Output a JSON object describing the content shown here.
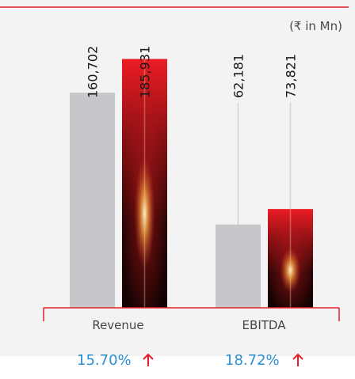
{
  "chart_data": {
    "type": "bar",
    "unit_note": "(₹ in Mn)",
    "categories": [
      "Revenue",
      "EBITDA"
    ],
    "series": [
      {
        "values": [
          160702,
          62181
        ],
        "color": "#c6c7cb"
      },
      {
        "values": [
          185931,
          73821
        ],
        "color": "#e31e24"
      }
    ],
    "value_labels": [
      [
        "160,702",
        "62,181"
      ],
      [
        "185,931",
        "73,821"
      ]
    ],
    "growth": [
      "15.70%",
      "18.72%"
    ],
    "growth_direction": "up",
    "ylim": [
      0,
      230000
    ],
    "grid": false,
    "legend": "none"
  },
  "colors": {
    "background_panel": "#f3f3f3",
    "accent_red": "#e31e24",
    "growth_text": "#2a8fd0"
  }
}
